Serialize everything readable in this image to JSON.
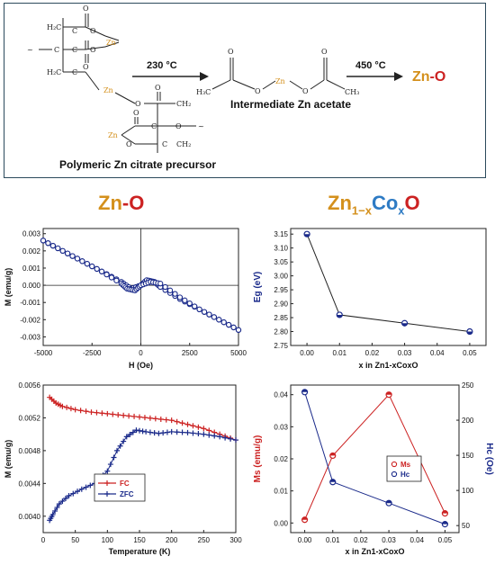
{
  "scheme": {
    "caption_precursor": "Polymeric Zn citrate precursor",
    "caption_intermediate": "Intermediate Zn acetate",
    "step1_temp": "230 °C",
    "step2_temp": "450 °C",
    "product_zn": "Zn",
    "product_dash": "-",
    "product_o": "O",
    "colors": {
      "zn": "#d4901c",
      "o": "#cc2222",
      "co": "#2e7bc4",
      "frame": "#2c4a5c"
    }
  },
  "headings": {
    "left": {
      "zn": "Zn",
      "dash": "-",
      "o": "O"
    },
    "right": {
      "zn": "Zn",
      "sub1": "1−x",
      "co": "Co",
      "sub2": "x",
      "o": "O"
    }
  },
  "chart_data": [
    {
      "id": "mh",
      "type": "scatter",
      "title": "",
      "xlabel": "H (Oe)",
      "ylabel": "M (emu/g)",
      "xlim": [
        -5000,
        5000
      ],
      "ylim": [
        -0.0035,
        0.0033
      ],
      "xticks": [
        -5000,
        -2500,
        0,
        2500,
        5000
      ],
      "xtick_labels": [
        "-5000",
        "-2500",
        "0",
        "2500",
        "5000"
      ],
      "yticks": [
        -0.003,
        -0.002,
        -0.001,
        0.0,
        0.001,
        0.002,
        0.003
      ],
      "ytick_labels": [
        "-0.003",
        "-0.002",
        "-0.001",
        "0.000",
        "0.001",
        "0.002",
        "0.003"
      ],
      "series": [
        {
          "color": "#1a2a8a",
          "x": [
            -5000,
            -4000,
            -3000,
            -2000,
            -1000,
            -500,
            0,
            300,
            700,
            1000,
            2000,
            3000,
            4000,
            5000
          ],
          "y": [
            0.0026,
            0.002,
            0.0014,
            0.0008,
            0.0002,
            -0.0002,
            0.0,
            0.0003,
            0.0002,
            -0.0001,
            -0.0008,
            -0.0014,
            -0.002,
            -0.0026
          ]
        },
        {
          "color": "#1a2a8a",
          "x": [
            -5000,
            -4000,
            -3000,
            -2000,
            -1000,
            -700,
            -300,
            0,
            500,
            1000,
            2000,
            3000,
            4000,
            5000
          ],
          "y": [
            0.0026,
            0.002,
            0.0014,
            0.0008,
            0.0001,
            -0.0002,
            -0.0003,
            0.0,
            0.0002,
            0.0001,
            -0.0007,
            -0.0014,
            -0.002,
            -0.0026
          ]
        }
      ]
    },
    {
      "id": "eg",
      "type": "line",
      "title": "",
      "xlabel": "x in Zn1-xCoxO",
      "ylabel": "Eg (eV)",
      "xlim": [
        -0.005,
        0.055
      ],
      "ylim": [
        2.75,
        3.17
      ],
      "xticks": [
        0.0,
        0.01,
        0.02,
        0.03,
        0.04,
        0.05
      ],
      "xtick_labels": [
        "0.00",
        "0.01",
        "0.02",
        "0.03",
        "0.04",
        "0.05"
      ],
      "yticks": [
        2.75,
        2.8,
        2.85,
        2.9,
        2.95,
        3.0,
        3.05,
        3.1,
        3.15
      ],
      "ytick_labels": [
        "2.75",
        "2.80",
        "2.85",
        "2.90",
        "2.95",
        "3.00",
        "3.05",
        "3.10",
        "3.15"
      ],
      "series": [
        {
          "color": "#1a2a8a",
          "x": [
            0.0,
            0.01,
            0.03,
            0.05
          ],
          "y": [
            3.15,
            2.86,
            2.83,
            2.8
          ]
        }
      ]
    },
    {
      "id": "mt",
      "type": "line",
      "title": "",
      "xlabel": "Temperature (K)",
      "ylabel": "M (emu/g)",
      "xlim": [
        0,
        300
      ],
      "ylim": [
        0.0038,
        0.0056
      ],
      "xticks": [
        0,
        50,
        100,
        150,
        200,
        250,
        300
      ],
      "xtick_labels": [
        "0",
        "50",
        "100",
        "150",
        "200",
        "250",
        "300"
      ],
      "yticks": [
        0.004,
        0.0044,
        0.0048,
        0.0052,
        0.0056
      ],
      "ytick_labels": [
        "0.0040",
        "0.0044",
        "0.0048",
        "0.0052",
        "0.0056"
      ],
      "legend": "bottom-center",
      "series": [
        {
          "name": "FC",
          "color": "#cc2222",
          "x": [
            10,
            20,
            30,
            50,
            75,
            100,
            125,
            150,
            175,
            200,
            225,
            250,
            275,
            300
          ],
          "y": [
            0.00545,
            0.00538,
            0.00534,
            0.0053,
            0.00527,
            0.00525,
            0.00523,
            0.00521,
            0.00519,
            0.00517,
            0.00512,
            0.00507,
            0.005,
            0.00493
          ]
        },
        {
          "name": "ZFC",
          "color": "#1a2a8a",
          "x": [
            10,
            15,
            25,
            40,
            60,
            80,
            100,
            115,
            130,
            145,
            160,
            180,
            200,
            225,
            250,
            275,
            300
          ],
          "y": [
            0.00395,
            0.00402,
            0.00415,
            0.00425,
            0.00433,
            0.0044,
            0.00455,
            0.0048,
            0.00497,
            0.00505,
            0.00503,
            0.00501,
            0.00503,
            0.00502,
            0.005,
            0.00497,
            0.00493
          ]
        }
      ]
    },
    {
      "id": "mshc",
      "type": "line",
      "title": "",
      "xlabel": "x in Zn1-xCoxO",
      "ylabel": "Ms (emu/g)",
      "ylabel_right": "Hc (Oe)",
      "xlim": [
        -0.005,
        0.055
      ],
      "ylim": [
        -0.003,
        0.043
      ],
      "ylim_right": [
        40,
        250
      ],
      "xticks": [
        0.0,
        0.01,
        0.02,
        0.03,
        0.04,
        0.05
      ],
      "xtick_labels": [
        "0.00",
        "0.01",
        "0.02",
        "0.03",
        "0.04",
        "0.05"
      ],
      "yticks": [
        0.0,
        0.01,
        0.02,
        0.03,
        0.04
      ],
      "ytick_labels": [
        "0.00",
        "0.01",
        "0.02",
        "0.03",
        "0.04"
      ],
      "yticks_right": [
        50,
        100,
        150,
        200,
        250
      ],
      "ytick_labels_right": [
        "50",
        "100",
        "150",
        "200",
        "250"
      ],
      "legend": "center-right",
      "series": [
        {
          "name": "Ms",
          "axis": "left",
          "color": "#cc2222",
          "x": [
            0.0,
            0.01,
            0.03,
            0.05
          ],
          "y": [
            0.001,
            0.021,
            0.04,
            0.003
          ]
        },
        {
          "name": "Hc",
          "axis": "right",
          "color": "#1a2a8a",
          "x": [
            0.0,
            0.01,
            0.03,
            0.05
          ],
          "y": [
            240,
            112,
            82,
            52
          ]
        }
      ]
    }
  ]
}
